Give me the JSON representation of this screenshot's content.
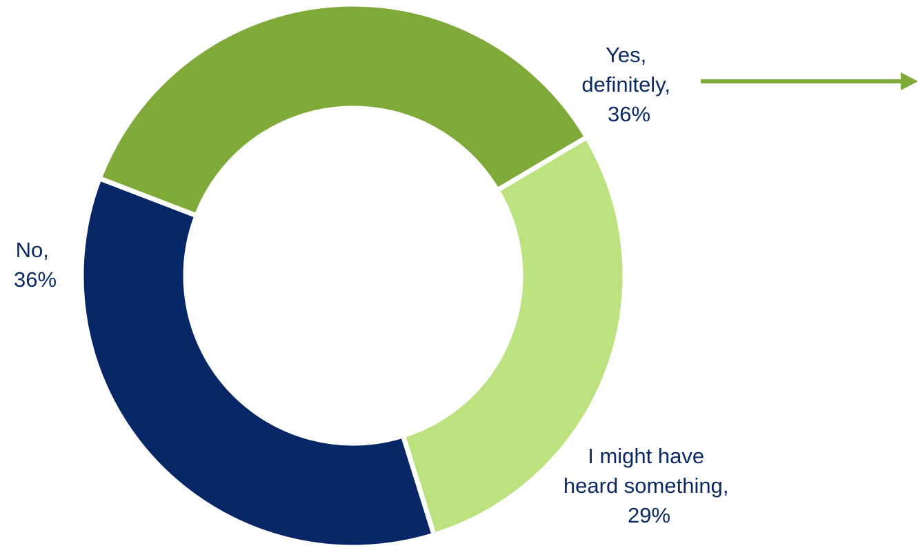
{
  "chart_data": {
    "type": "pie",
    "variant": "donut",
    "title": "",
    "slices": [
      {
        "label_lines": [
          "Yes,",
          "definitely,",
          "36%"
        ],
        "category": "Yes, definitely",
        "value": 36,
        "color": "#7faa3a"
      },
      {
        "label_lines": [
          "I might have",
          "heard something,",
          "29%"
        ],
        "category": "I might have heard something",
        "value": 29,
        "color": "#bbe27f"
      },
      {
        "label_lines": [
          "No,",
          "36%"
        ],
        "category": "No",
        "value": 36,
        "color": "#062666"
      }
    ],
    "legend": "none",
    "label_color": "#0b2a63",
    "arrow_color": "#7faa3a",
    "separator_color": "#ffffff"
  }
}
